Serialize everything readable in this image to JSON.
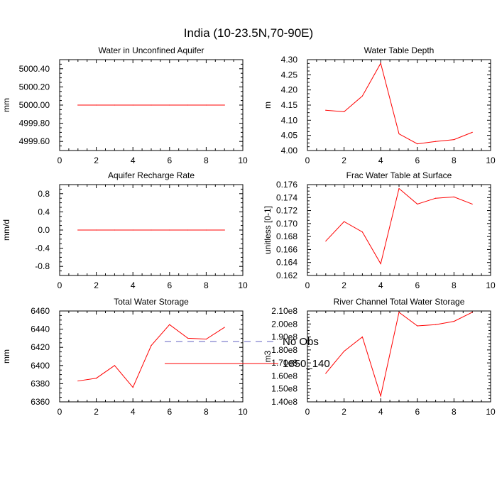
{
  "title": "India (10-23.5N,70-90E)",
  "colors": {
    "series": "#ff0000",
    "obs": "#6060c0",
    "axis": "#000000"
  },
  "legend": [
    {
      "label": "No Obs",
      "style": "dashed",
      "color": "#6060c0"
    },
    {
      "label": "1850_140",
      "style": "solid",
      "color": "#ff0000"
    }
  ],
  "chart_data": [
    {
      "type": "line",
      "title": "Water in Unconfined Aquifer",
      "xlabel": "",
      "ylabel": "mm",
      "xlim": [
        0,
        10
      ],
      "ylim": [
        4999.5,
        5000.5
      ],
      "xticks": [
        0,
        2,
        4,
        6,
        8,
        10
      ],
      "xtick_labels": [
        "0",
        "2",
        "4",
        "6",
        "8",
        "10"
      ],
      "yticks": [
        4999.6,
        4999.8,
        5000.0,
        5000.2,
        5000.4
      ],
      "ytick_labels": [
        "4999.60",
        "4999.80",
        "5000.00",
        "5000.20",
        "5000.40"
      ],
      "series": [
        {
          "name": "1850_140",
          "x": [
            1,
            2,
            3,
            4,
            5,
            6,
            7,
            8,
            9
          ],
          "values": [
            5000,
            5000,
            5000,
            5000,
            5000,
            5000,
            5000,
            5000,
            5000
          ]
        }
      ]
    },
    {
      "type": "line",
      "title": "Water Table Depth",
      "xlabel": "",
      "ylabel": "m",
      "xlim": [
        0,
        10
      ],
      "ylim": [
        4.0,
        4.3
      ],
      "xticks": [
        0,
        2,
        4,
        6,
        8,
        10
      ],
      "xtick_labels": [
        "0",
        "2",
        "4",
        "6",
        "8",
        "10"
      ],
      "yticks": [
        4.0,
        4.05,
        4.1,
        4.15,
        4.2,
        4.25,
        4.3
      ],
      "ytick_labels": [
        "4.00",
        "4.05",
        "4.10",
        "4.15",
        "4.20",
        "4.25",
        "4.30"
      ],
      "series": [
        {
          "name": "1850_140",
          "x": [
            1,
            2,
            3,
            4,
            5,
            6,
            7,
            8,
            9
          ],
          "values": [
            4.133,
            4.128,
            4.18,
            4.288,
            4.055,
            4.022,
            4.03,
            4.036,
            4.06
          ]
        }
      ]
    },
    {
      "type": "line",
      "title": "Aquifer Recharge Rate",
      "xlabel": "",
      "ylabel": "mm/d",
      "xlim": [
        0,
        10
      ],
      "ylim": [
        -1.0,
        1.0
      ],
      "xticks": [
        0,
        2,
        4,
        6,
        8,
        10
      ],
      "xtick_labels": [
        "0",
        "2",
        "4",
        "6",
        "8",
        "10"
      ],
      "yticks": [
        -0.8,
        -0.4,
        0.0,
        0.4,
        0.8
      ],
      "ytick_labels": [
        "-0.8",
        "-0.4",
        "0.0",
        "0.4",
        "0.8"
      ],
      "series": [
        {
          "name": "1850_140",
          "x": [
            1,
            2,
            3,
            4,
            5,
            6,
            7,
            8,
            9
          ],
          "values": [
            0,
            0,
            0,
            0,
            0,
            0,
            0,
            0,
            0
          ]
        }
      ]
    },
    {
      "type": "line",
      "title": "Frac Water Table at Surface",
      "xlabel": "",
      "ylabel": "unitless [0-1]",
      "xlim": [
        0,
        10
      ],
      "ylim": [
        0.162,
        0.176
      ],
      "xticks": [
        0,
        2,
        4,
        6,
        8,
        10
      ],
      "xtick_labels": [
        "0",
        "2",
        "4",
        "6",
        "8",
        "10"
      ],
      "yticks": [
        0.162,
        0.164,
        0.166,
        0.168,
        0.17,
        0.172,
        0.174,
        0.176
      ],
      "ytick_labels": [
        "0.162",
        "0.164",
        "0.166",
        "0.168",
        "0.170",
        "0.172",
        "0.174",
        "0.176"
      ],
      "series": [
        {
          "name": "1850_140",
          "x": [
            1,
            2,
            3,
            4,
            5,
            6,
            7,
            8,
            9
          ],
          "values": [
            0.1673,
            0.1703,
            0.1687,
            0.1638,
            0.1754,
            0.173,
            0.1739,
            0.1741,
            0.173
          ]
        }
      ]
    },
    {
      "type": "line",
      "title": "Total Water Storage",
      "xlabel": "",
      "ylabel": "mm",
      "xlim": [
        0,
        10
      ],
      "ylim": [
        6360,
        6460
      ],
      "xticks": [
        0,
        2,
        4,
        6,
        8,
        10
      ],
      "xtick_labels": [
        "0",
        "2",
        "4",
        "6",
        "8",
        "10"
      ],
      "yticks": [
        6360,
        6380,
        6400,
        6420,
        6440,
        6460
      ],
      "ytick_labels": [
        "6360",
        "6380",
        "6400",
        "6420",
        "6440",
        "6460"
      ],
      "series": [
        {
          "name": "1850_140",
          "x": [
            1,
            2,
            3,
            4,
            5,
            6,
            7,
            8,
            9
          ],
          "values": [
            6383,
            6386,
            6400,
            6376,
            6422,
            6445,
            6430,
            6429,
            6442
          ]
        }
      ]
    },
    {
      "type": "line",
      "title": "River Channel Total Water Storage",
      "xlabel": "",
      "ylabel": "m3",
      "xlim": [
        0,
        10
      ],
      "ylim": [
        140000000.0,
        210000000.0
      ],
      "xticks": [
        0,
        2,
        4,
        6,
        8,
        10
      ],
      "xtick_labels": [
        "0",
        "2",
        "4",
        "6",
        "8",
        "10"
      ],
      "yticks": [
        140000000.0,
        150000000.0,
        160000000.0,
        170000000.0,
        180000000.0,
        190000000.0,
        200000000.0,
        210000000.0
      ],
      "ytick_labels": [
        "1.40e8",
        "1.50e8",
        "1.60e8",
        "1.70e8",
        "1.80e8",
        "1.90e8",
        "2.00e8",
        "2.10e8"
      ],
      "series": [
        {
          "name": "1850_140",
          "x": [
            1,
            2,
            3,
            4,
            5,
            6,
            7,
            8,
            9
          ],
          "values": [
            162000000.0,
            179000000.0,
            190000000.0,
            144500000.0,
            209000000.0,
            198500000.0,
            199500000.0,
            202000000.0,
            209000000.0
          ]
        }
      ]
    }
  ]
}
